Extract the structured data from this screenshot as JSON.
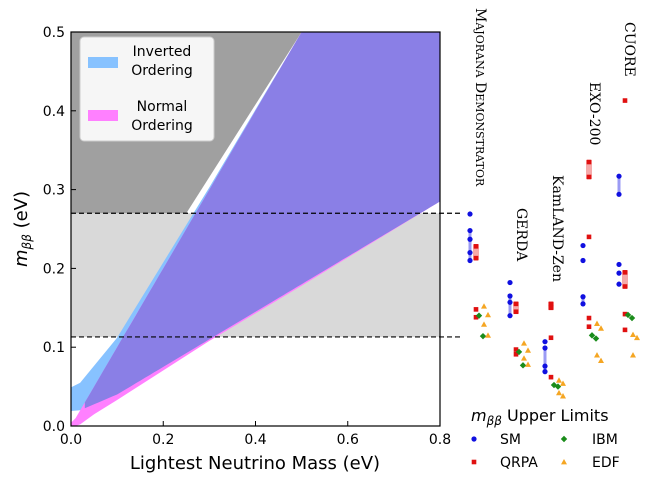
{
  "chart_data": {
    "type": "area",
    "xlabel": "Lightest Neutrino Mass (eV)",
    "ylabel": "m_ββ (eV)",
    "ylabel_main": "m",
    "ylabel_sub": "ββ",
    "ylabel_unit": " (eV)",
    "xlim": [
      0,
      0.8
    ],
    "ylim": [
      0,
      0.5
    ],
    "xticks": [
      "0.0",
      "0.2",
      "0.4",
      "0.6",
      "0.8"
    ],
    "yticks": [
      "0.0",
      "0.1",
      "0.2",
      "0.3",
      "0.4",
      "0.5"
    ],
    "xtick_values": [
      0,
      0.2,
      0.4,
      0.6,
      0.8
    ],
    "ytick_values": [
      0,
      0.1,
      0.2,
      0.3,
      0.4,
      0.5
    ],
    "grid": false,
    "legend_position": "top-left",
    "series": [
      {
        "name": "Inverted Ordering",
        "label_lines": [
          "Inverted",
          "Ordering"
        ],
        "color": "#87c2ff",
        "upper": [
          [
            0,
            0.049
          ],
          [
            0.02,
            0.055
          ],
          [
            0.1,
            0.112
          ],
          [
            0.3,
            0.303
          ],
          [
            0.5,
            0.5
          ],
          [
            0.8,
            0.8
          ]
        ],
        "lower": [
          [
            0,
            0.019
          ],
          [
            0.02,
            0.02
          ],
          [
            0.1,
            0.04
          ],
          [
            0.3,
            0.11
          ],
          [
            0.5,
            0.18
          ],
          [
            0.8,
            0.285
          ]
        ]
      },
      {
        "name": "Normal Ordering",
        "label_lines": [
          "Normal",
          "Ordering"
        ],
        "color": "#ff80ff",
        "upper": [
          [
            0,
            0.004
          ],
          [
            0.01,
            0.01
          ],
          [
            0.05,
            0.05
          ],
          [
            0.1,
            0.1
          ],
          [
            0.3,
            0.3
          ],
          [
            0.5,
            0.5
          ],
          [
            0.8,
            0.8
          ]
        ],
        "lower": [
          [
            0,
            0
          ],
          [
            0.01,
            0
          ],
          [
            0.02,
            0.002
          ],
          [
            0.05,
            0.015
          ],
          [
            0.1,
            0.033
          ],
          [
            0.3,
            0.108
          ],
          [
            0.5,
            0.178
          ],
          [
            0.8,
            0.285
          ]
        ]
      }
    ],
    "overlap_color": "#8a7fe6",
    "excluded_region": {
      "ymin_at_x0": 0.27,
      "slope_line_through": [
        [
          0.25,
          0.27
        ],
        [
          0.5,
          0.5
        ]
      ],
      "color": "#a0a0a0"
    },
    "band": {
      "ymin": 0.113,
      "ymax": 0.27,
      "color": "#d9d9d9"
    },
    "hlines": [
      0.27,
      0.113
    ],
    "experiments": [
      {
        "label": "MAJORANA DEMONSTRATOR",
        "label_parts": [
          [
            "M",
            true
          ],
          [
            "AJORANA",
            false
          ],
          [
            " ",
            true
          ],
          [
            "D",
            true
          ],
          [
            "EMONSTRATOR",
            false
          ]
        ],
        "SM": [
          0.269,
          0.248,
          0.237,
          0.22,
          0.21
        ],
        "QRPA": [
          0.228,
          0.213,
          0.148,
          0.138
        ],
        "IBM": [
          0.14,
          0.114
        ],
        "EDF": [
          0.152,
          0.141,
          0.129,
          0.115
        ],
        "range_SM": [
          0.21,
          0.248
        ],
        "range_QRPA": [
          0.213,
          0.228
        ]
      },
      {
        "label": "GERDA",
        "label_parts": [
          [
            "GERDA",
            true
          ]
        ],
        "SM": [
          0.182,
          0.165,
          0.157,
          0.14
        ],
        "QRPA": [
          0.155,
          0.145,
          0.097,
          0.091
        ],
        "IBM": [
          0.094,
          0.077
        ],
        "EDF": [
          0.105,
          0.096,
          0.086,
          0.078
        ],
        "range_SM": [
          0.14,
          0.165
        ],
        "range_QRPA": [
          0.145,
          0.155
        ]
      },
      {
        "label": "KamLAND-Zen",
        "label_parts": [
          [
            "KamLAND-Zen",
            true
          ]
        ],
        "SM": [
          0.107,
          0.099,
          0.076,
          0.069
        ],
        "QRPA": [
          0.155,
          0.15,
          0.112,
          0.062
        ],
        "IBM": [
          0.052,
          0.05
        ],
        "EDF": [
          0.058,
          0.054,
          0.042,
          0.038
        ],
        "range_SM": [
          0.069,
          0.099
        ],
        "range_QRPA": [
          0.15,
          0.155
        ]
      },
      {
        "label": "EXO-200",
        "label_parts": [
          [
            "EXO-200",
            true
          ]
        ],
        "SM": [
          0.229,
          0.21,
          0.164,
          0.155
        ],
        "QRPA": [
          0.335,
          0.316,
          0.24,
          0.137,
          0.126
        ],
        "IBM": [
          0.115,
          0.111
        ],
        "EDF": [
          0.13,
          0.124,
          0.09,
          0.083
        ],
        "range_SM": [
          0.155,
          0.164
        ],
        "range_QRPA": [
          0.316,
          0.335
        ]
      },
      {
        "label": "CUORE",
        "label_parts": [
          [
            "CUORE",
            true
          ]
        ],
        "SM": [
          0.317,
          0.294,
          0.205,
          0.194,
          0.18
        ],
        "QRPA": [
          0.413,
          0.195,
          0.177,
          0.142,
          0.122
        ],
        "IBM": [
          0.141,
          0.137
        ],
        "EDF": [
          0.116,
          0.112,
          0.09
        ],
        "range_SM": [
          0.294,
          0.317
        ],
        "range_QRPA": [
          0.177,
          0.195
        ]
      }
    ],
    "upper_limits_legend": {
      "title_main": "m",
      "title_sub": "ββ",
      "title_rest": " Upper Limits",
      "items": [
        {
          "name": "SM",
          "color": "#1010e0",
          "marker": "circle"
        },
        {
          "name": "IBM",
          "color": "#1a8c1a",
          "marker": "diamond"
        },
        {
          "name": "QRPA",
          "color": "#e01010",
          "marker": "square"
        },
        {
          "name": "EDF",
          "color": "#f5a623",
          "marker": "triangle"
        }
      ]
    }
  }
}
